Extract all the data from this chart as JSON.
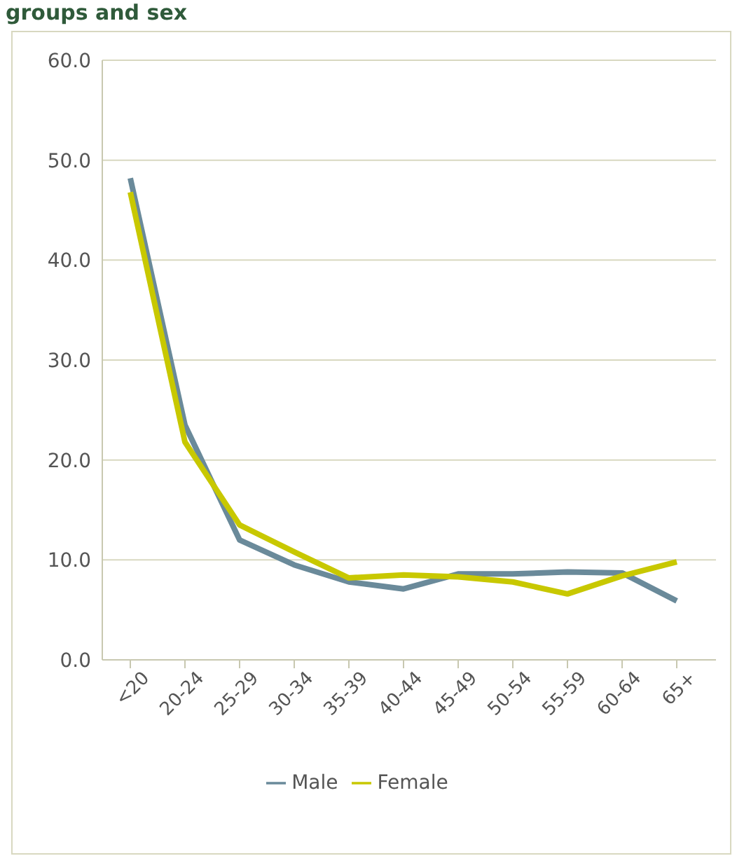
{
  "chart_data": {
    "type": "line",
    "title": "groups and sex",
    "categories": [
      "<20",
      "20-24",
      "25-29",
      "30-34",
      "35-39",
      "40-44",
      "45-49",
      "50-54",
      "55-59",
      "60-64",
      "65+"
    ],
    "series": [
      {
        "name": "Male",
        "color": "#6a8a9a",
        "values": [
          48.2,
          23.5,
          12.0,
          9.5,
          7.8,
          7.1,
          8.6,
          8.6,
          8.8,
          8.7,
          5.9
        ]
      },
      {
        "name": "Female",
        "color": "#c8c800",
        "values": [
          46.8,
          21.8,
          13.5,
          10.8,
          8.2,
          8.5,
          8.3,
          7.8,
          6.6,
          8.4,
          9.8
        ]
      }
    ],
    "ylim": [
      0,
      60
    ],
    "yticks": [
      {
        "value": 0,
        "label": "0.0"
      },
      {
        "value": 10,
        "label": "10.0"
      },
      {
        "value": 20,
        "label": "20.0"
      },
      {
        "value": 30,
        "label": "30.0"
      },
      {
        "value": 40,
        "label": "40.0"
      },
      {
        "value": 50,
        "label": "50.0"
      },
      {
        "value": 60,
        "label": "60.0"
      }
    ],
    "grid": "y",
    "legend": "bottom",
    "marker": "none",
    "line_style": "solid"
  }
}
